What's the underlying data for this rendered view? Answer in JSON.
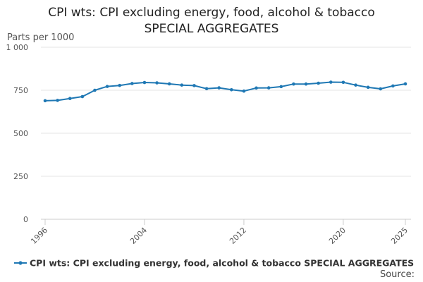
{
  "chart_data": {
    "type": "line",
    "title_line1": "CPI wts: CPI excluding energy, food, alcohol & tobacco",
    "title_line2": "SPECIAL AGGREGATES",
    "ylabel": "Parts per 1000",
    "xlabel": "",
    "ylim": [
      0,
      1000
    ],
    "yticks": [
      0,
      250,
      500,
      750,
      1000
    ],
    "ytick_labels": [
      "0",
      "250",
      "500",
      "750",
      "1 000"
    ],
    "xlim": [
      1996,
      2025
    ],
    "xticks": [
      1996,
      2004,
      2012,
      2020,
      2025
    ],
    "xtick_labels": [
      "1996",
      "2004",
      "2012",
      "2020",
      "2025"
    ],
    "grid": true,
    "legend_position": "bottom",
    "series": [
      {
        "name": "CPI wts: CPI excluding energy, food, alcohol & tobacco SPECIAL AGGREGATES",
        "color": "#1f78b4",
        "x": [
          1996,
          1997,
          1998,
          1999,
          2000,
          2001,
          2002,
          2003,
          2004,
          2005,
          2006,
          2007,
          2008,
          2009,
          2010,
          2011,
          2012,
          2013,
          2014,
          2015,
          2016,
          2017,
          2018,
          2019,
          2020,
          2021,
          2022,
          2023,
          2024,
          2025
        ],
        "values": [
          689,
          691,
          702,
          713,
          750,
          772,
          778,
          789,
          795,
          793,
          787,
          780,
          777,
          759,
          764,
          753,
          745,
          763,
          764,
          771,
          786,
          786,
          791,
          797,
          796,
          780,
          767,
          758,
          775,
          787
        ]
      }
    ]
  },
  "source": {
    "label": "Source:"
  }
}
